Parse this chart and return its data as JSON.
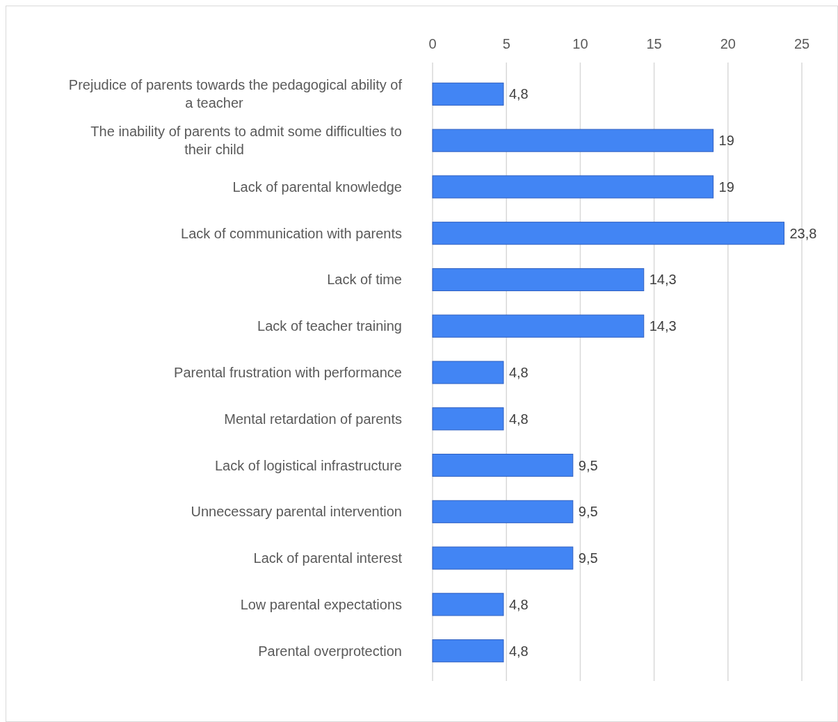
{
  "chart_data": {
    "type": "bar",
    "orientation": "horizontal",
    "categories": [
      "Prejudice of parents towards the pedagogical ability of a teacher",
      "The inability of parents to admit some difficulties to their child",
      "Lack of parental knowledge",
      "Lack of communication with parents",
      "Lack of time",
      "Lack of teacher training",
      "Parental frustration with performance",
      "Mental retardation of parents",
      "Lack of logistical infrastructure",
      "Unnecessary parental intervention",
      "Lack of parental interest",
      "Low parental expectations",
      "Parental overprotection"
    ],
    "values": [
      4.8,
      19,
      19,
      23.8,
      14.3,
      14.3,
      4.8,
      4.8,
      9.5,
      9.5,
      9.5,
      4.8,
      4.8
    ],
    "value_labels": [
      "4,8",
      "19",
      "19",
      "23,8",
      "14,3",
      "14,3",
      "4,8",
      "4,8",
      "9,5",
      "9,5",
      "9,5",
      "4,8",
      "4,8"
    ],
    "color": "#4285f4",
    "xlim": [
      0,
      25
    ],
    "xticks": [
      0,
      5,
      10,
      15,
      20,
      25
    ],
    "grid": "x"
  }
}
